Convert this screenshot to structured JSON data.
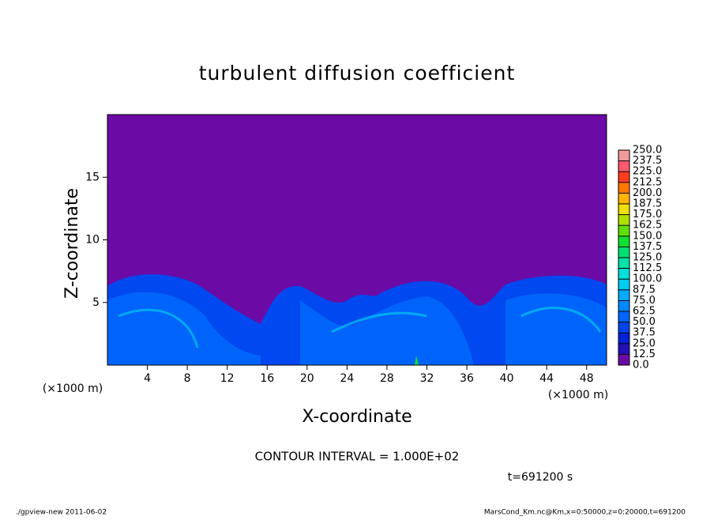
{
  "chart_data": {
    "type": "contour",
    "title": "turbulent diffusion coefficient",
    "x_label": "X-coordinate",
    "y_label": "Z-coordinate",
    "x_unit_left": "(×1000 m)",
    "x_unit_right": "(×1000 m)",
    "xlim": [
      0,
      50
    ],
    "xticks": [
      4,
      8,
      12,
      16,
      20,
      24,
      28,
      32,
      36,
      40,
      44,
      48
    ],
    "ylim": [
      0,
      20
    ],
    "yticks": [
      5,
      10,
      15
    ],
    "contour_interval": "CONTOUR INTERVAL = 1.000E+02",
    "time_label": "t=691200 s",
    "footer_left": "./gpview-new   2011-06-02",
    "footer_right": "MarsCond_Km.nc@Km,x=0:50000,z=0:20000,t=691200",
    "colorbar": {
      "levels": [
        {
          "value": 0,
          "label": "0.0"
        },
        {
          "value": 12.5,
          "label": "12.5"
        },
        {
          "value": 25,
          "label": "25.0"
        },
        {
          "value": 37.5,
          "label": "37.5"
        },
        {
          "value": 50,
          "label": "50.0"
        },
        {
          "value": 62.5,
          "label": "62.5"
        },
        {
          "value": 75,
          "label": "75.0"
        },
        {
          "value": 87.5,
          "label": "87.5"
        },
        {
          "value": 100,
          "label": "100.0"
        },
        {
          "value": 112.5,
          "label": "112.5"
        },
        {
          "value": 125,
          "label": "125.0"
        },
        {
          "value": 137.5,
          "label": "137.5"
        },
        {
          "value": 150,
          "label": "150.0"
        },
        {
          "value": 162.5,
          "label": "162.5"
        },
        {
          "value": 175,
          "label": "175.0"
        },
        {
          "value": 187.5,
          "label": "187.5"
        },
        {
          "value": 200,
          "label": "200.0"
        },
        {
          "value": 212.5,
          "label": "212.5"
        },
        {
          "value": 225,
          "label": "225.0"
        },
        {
          "value": 237.5,
          "label": "237.5"
        },
        {
          "value": 250,
          "label": "250.0"
        }
      ],
      "colors": [
        "#6c0aa6",
        "#2410b8",
        "#0022d8",
        "#0044f0",
        "#0064ff",
        "#0088ff",
        "#00aaff",
        "#00ccf0",
        "#00e0d8",
        "#00e0a8",
        "#00e070",
        "#10e030",
        "#60e000",
        "#b0e000",
        "#f0e000",
        "#ffb400",
        "#ff7800",
        "#ff3c1e",
        "#ff5a6e",
        "#f09a9a"
      ]
    }
  }
}
